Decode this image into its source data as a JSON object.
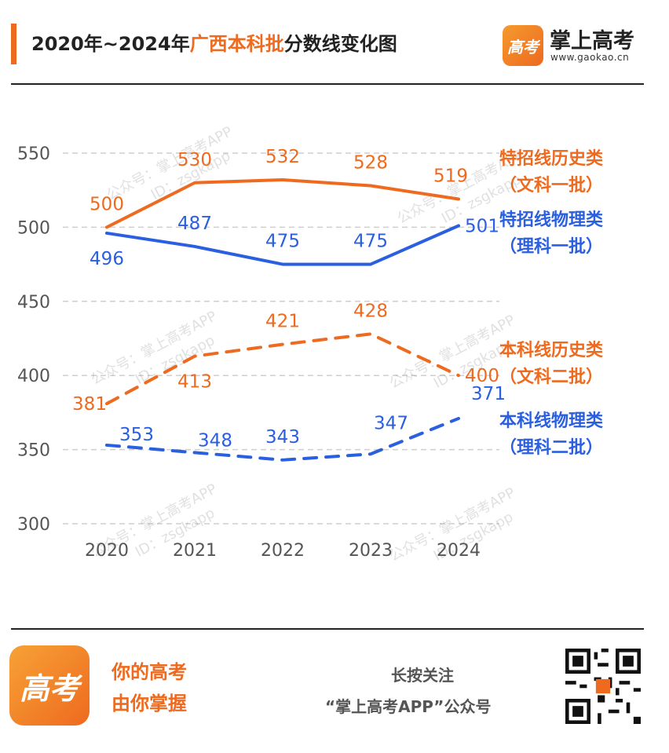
{
  "header": {
    "title_prefix": "2020年~2024年",
    "title_highlight": "广西本科批",
    "title_suffix": "分数线变化图"
  },
  "brand": {
    "logo_text": "高考",
    "name": "掌上高考",
    "url": "www.gaokao.cn"
  },
  "footer": {
    "logo_text": "高考",
    "slogan_line1": "你的高考",
    "slogan_line2": "由你掌握",
    "follow_line1": "长按关注",
    "follow_line2": "“掌上高考APP”公众号"
  },
  "watermark": {
    "line1": "公众号：掌上高考APP",
    "line2": "ID：zsgkapp"
  },
  "colors": {
    "orange": "#ee6a1f",
    "blue": "#2a5fe0",
    "grid": "#cfcfcf",
    "axis_text": "#555555"
  },
  "chart_data": {
    "type": "line",
    "x": [
      "2020",
      "2021",
      "2022",
      "2023",
      "2024"
    ],
    "ylim": [
      300,
      550
    ],
    "yticks": [
      300,
      350,
      400,
      450,
      500,
      550
    ],
    "grid": true,
    "series": [
      {
        "name": "特招线历史类",
        "sub": "（文科一批）",
        "color": "#ee6a1f",
        "style": "solid",
        "values": [
          500,
          530,
          532,
          528,
          519
        ]
      },
      {
        "name": "特招线物理类",
        "sub": "（理科一批）",
        "color": "#2a5fe0",
        "style": "solid",
        "values": [
          496,
          487,
          475,
          475,
          501
        ]
      },
      {
        "name": "本科线历史类",
        "sub": "（文科二批）",
        "color": "#ee6a1f",
        "style": "dashed",
        "values": [
          381,
          413,
          421,
          428,
          400
        ]
      },
      {
        "name": "本科线物理类",
        "sub": "（理科二批）",
        "color": "#2a5fe0",
        "style": "dashed",
        "values": [
          353,
          348,
          343,
          347,
          371
        ]
      }
    ]
  }
}
